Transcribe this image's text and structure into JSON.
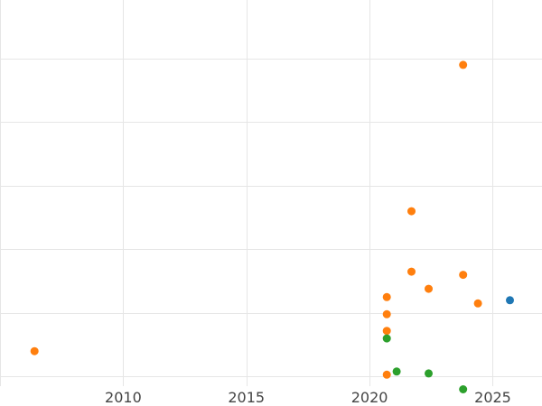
{
  "chart_data": {
    "type": "scatter",
    "title": "",
    "xlabel": "",
    "ylabel": "",
    "xlim": [
      2005.0,
      2027.0
    ],
    "ylim": [
      -0.15,
      5.92
    ],
    "x_ticks": [
      2010,
      2015,
      2020,
      2025
    ],
    "x_tick_labels": [
      "2010",
      "2015",
      "2020",
      "2025"
    ],
    "y_gridlines": [
      0,
      1,
      2,
      3,
      4,
      5,
      6
    ],
    "x_gridlines": [
      2005,
      2010,
      2015,
      2020,
      2025
    ],
    "grid": true,
    "legend": "none",
    "series": [
      {
        "color": "#1f77b4",
        "points": [
          {
            "x": 2025.7,
            "y": 1.2
          }
        ]
      },
      {
        "color": "#ff7f0e",
        "points": [
          {
            "x": 2006.4,
            "y": 0.4
          },
          {
            "x": 2020.7,
            "y": 0.03
          },
          {
            "x": 2020.7,
            "y": 0.72
          },
          {
            "x": 2020.7,
            "y": 0.98
          },
          {
            "x": 2020.7,
            "y": 1.25
          },
          {
            "x": 2021.7,
            "y": 1.65
          },
          {
            "x": 2021.7,
            "y": 2.6
          },
          {
            "x": 2022.4,
            "y": 1.38
          },
          {
            "x": 2023.8,
            "y": 1.6
          },
          {
            "x": 2023.8,
            "y": 4.9
          },
          {
            "x": 2024.4,
            "y": 1.15
          }
        ]
      },
      {
        "color": "#2ca02c",
        "points": [
          {
            "x": 2020.7,
            "y": 0.6
          },
          {
            "x": 2021.1,
            "y": 0.08
          },
          {
            "x": 2022.4,
            "y": 0.05
          },
          {
            "x": 2023.8,
            "y": -0.2
          }
        ]
      }
    ]
  }
}
